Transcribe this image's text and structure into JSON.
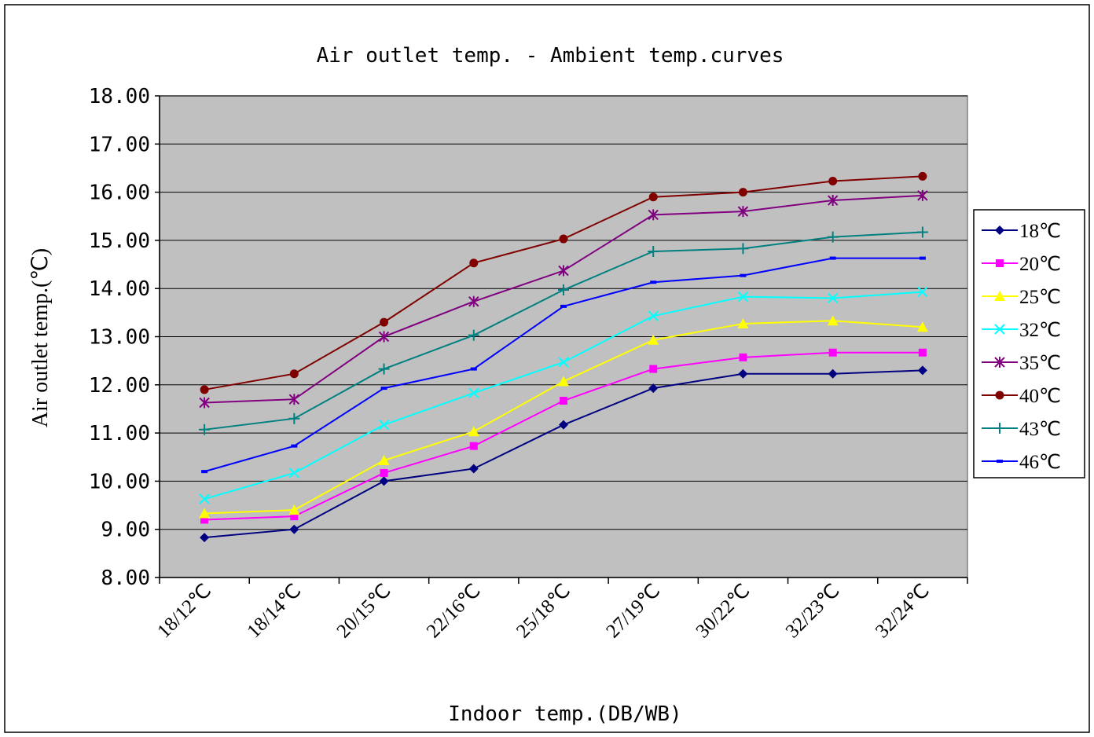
{
  "chart_data": {
    "type": "line",
    "title": "Air outlet temp. - Ambient temp.curves",
    "xlabel": "Indoor temp.(DB/WB)",
    "ylabel": "Air outlet temp.(℃)",
    "ylim": [
      8,
      18
    ],
    "yticks": [
      "8.00",
      "9.00",
      "10.00",
      "11.00",
      "12.00",
      "13.00",
      "14.00",
      "15.00",
      "16.00",
      "17.00",
      "18.00"
    ],
    "grid": "horizontal",
    "legend_position": "right",
    "plot_background": "#c0c0c0",
    "categories": [
      "18/12℃",
      "18/14℃",
      "20/15℃",
      "22/16℃",
      "25/18℃",
      "27/19℃",
      "30/22℃",
      "32/23℃",
      "32/24℃"
    ],
    "series": [
      {
        "name": "18℃",
        "color": "#000080",
        "marker": "diamond",
        "values": [
          8.83,
          9.0,
          10.0,
          10.26,
          11.17,
          11.93,
          12.23,
          12.23,
          12.3
        ]
      },
      {
        "name": "20℃",
        "color": "#ff00ff",
        "marker": "square",
        "values": [
          9.2,
          9.27,
          10.17,
          10.73,
          11.67,
          12.33,
          12.57,
          12.67,
          12.67
        ]
      },
      {
        "name": "25℃",
        "color": "#ffff00",
        "marker": "triangle",
        "values": [
          9.33,
          9.4,
          10.43,
          11.03,
          12.07,
          12.93,
          13.27,
          13.33,
          13.2
        ]
      },
      {
        "name": "32℃",
        "color": "#00ffff",
        "marker": "x",
        "values": [
          9.63,
          10.17,
          11.17,
          11.83,
          12.47,
          13.43,
          13.83,
          13.8,
          13.93
        ]
      },
      {
        "name": "35℃",
        "color": "#800080",
        "marker": "star",
        "values": [
          11.63,
          11.7,
          13.0,
          13.73,
          14.37,
          15.53,
          15.6,
          15.83,
          15.93
        ]
      },
      {
        "name": "40℃",
        "color": "#800000",
        "marker": "circle",
        "values": [
          11.9,
          12.23,
          13.3,
          14.53,
          15.03,
          15.9,
          16.0,
          16.23,
          16.33
        ]
      },
      {
        "name": "43℃",
        "color": "#008080",
        "marker": "plus",
        "values": [
          11.07,
          11.3,
          12.33,
          13.03,
          13.97,
          14.77,
          14.83,
          15.07,
          15.17
        ]
      },
      {
        "name": "46℃",
        "color": "#0000ff",
        "marker": "dash",
        "values": [
          10.2,
          10.73,
          11.93,
          12.33,
          13.63,
          14.13,
          14.27,
          14.63,
          14.63
        ]
      }
    ]
  }
}
